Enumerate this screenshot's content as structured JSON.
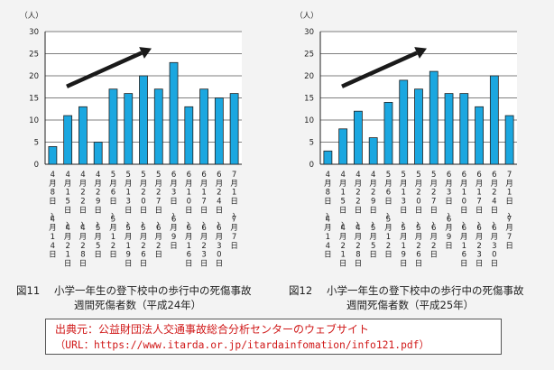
{
  "chart_data": [
    {
      "type": "bar",
      "unit": "（人）",
      "yticks": [
        0,
        5,
        10,
        15,
        20,
        25,
        30
      ],
      "ylim": [
        0,
        30
      ],
      "grid": true,
      "color": "#1ba7e0",
      "trend_arrow": "upward",
      "categories": [
        "4月8日〜4月14日",
        "4月15日〜4月21日",
        "4月22日〜4月28日",
        "4月29日〜5月5日",
        "5月6日〜5月12日",
        "5月13日〜5月19日",
        "5月20日〜5月26日",
        "5月27日〜6月2日",
        "6月3日〜6月9日",
        "6月10日〜6月16日",
        "6月17日〜6月23日",
        "6月24日〜6月30日",
        "7月1日〜7月7日"
      ],
      "values": [
        4,
        11,
        13,
        5,
        17,
        16,
        20,
        17,
        23,
        13,
        17,
        15,
        16
      ],
      "figure_number": "図11",
      "title_line1": "小学一年生の登下校中の歩行中の死傷事故",
      "title_line2": "週間死傷者数（平成24年）"
    },
    {
      "type": "bar",
      "unit": "（人）",
      "yticks": [
        0,
        5,
        10,
        15,
        20,
        25,
        30
      ],
      "ylim": [
        0,
        30
      ],
      "grid": true,
      "color": "#1ba7e0",
      "trend_arrow": "upward",
      "categories": [
        "4月8日〜4月14日",
        "4月15日〜4月21日",
        "4月22日〜4月28日",
        "4月29日〜5月5日",
        "5月6日〜5月12日",
        "5月13日〜5月19日",
        "5月20日〜5月26日",
        "5月27日〜6月2日",
        "6月3日〜6月9日",
        "6月10日〜6月16日",
        "6月17日〜6月23日",
        "6月24日〜6月30日",
        "7月1日〜7月7日"
      ],
      "values": [
        3,
        8,
        12,
        6,
        14,
        19,
        17,
        21,
        16,
        16,
        13,
        20,
        11
      ],
      "figure_number": "図12",
      "title_line1": "小学一年生の登下校中の歩行中の死傷事故",
      "title_line2": "週間死傷者数（平成25年）"
    }
  ],
  "source": {
    "line1": "出典元：公益財団法人交通事故総合分析センターのウェブサイト",
    "line2": "（URL：https://www.itarda.or.jp/itardainfomation/info121.pdf）"
  }
}
